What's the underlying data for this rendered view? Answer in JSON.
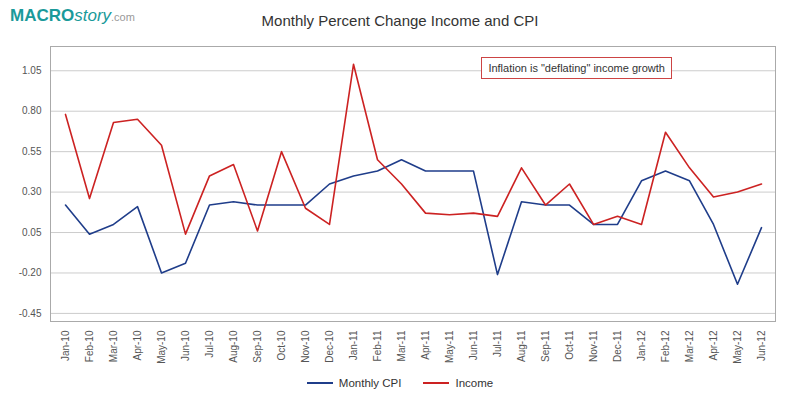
{
  "chart_data": {
    "type": "line",
    "title": "Monthly Percent Change Income and CPI",
    "annotations": [
      {
        "text": "Inflation is \"deflating\" income growth",
        "color": "#cc4444"
      },
      {
        "text": "MACRO",
        "color": "#1a9a9a"
      },
      {
        "text": "story",
        "color": "#1a9a9a"
      },
      {
        "text": ".com",
        "color": "#999999"
      }
    ],
    "categories": [
      "Jan-10",
      "Feb-10",
      "Mar-10",
      "Apr-10",
      "May-10",
      "Jun-10",
      "Jul-10",
      "Aug-10",
      "Sep-10",
      "Oct-10",
      "Nov-10",
      "Dec-10",
      "Jan-11",
      "Feb-11",
      "Mar-11",
      "Apr-11",
      "May-11",
      "Jun-11",
      "Jul-11",
      "Aug-11",
      "Sep-11",
      "Oct-11",
      "Nov-11",
      "Dec-11",
      "Jan-12",
      "Feb-12",
      "Mar-12",
      "Apr-12",
      "May-12",
      "Jun-12"
    ],
    "series": [
      {
        "name": "Monthly CPI",
        "color": "#1f3d8a",
        "values": [
          0.22,
          0.04,
          0.1,
          0.21,
          -0.2,
          -0.14,
          0.22,
          0.24,
          0.22,
          0.22,
          0.22,
          0.35,
          0.4,
          0.43,
          0.5,
          0.43,
          0.43,
          0.43,
          -0.21,
          0.24,
          0.22,
          0.22,
          0.1,
          0.1,
          0.37,
          0.43,
          0.37,
          0.1,
          -0.27,
          0.08
        ]
      },
      {
        "name": "Income",
        "color": "#cc2222",
        "values": [
          0.78,
          0.26,
          0.73,
          0.75,
          0.59,
          0.04,
          0.4,
          0.47,
          0.06,
          0.55,
          0.2,
          0.1,
          1.09,
          0.5,
          0.35,
          0.17,
          0.16,
          0.17,
          0.15,
          0.45,
          0.22,
          0.35,
          0.1,
          0.15,
          0.1,
          0.67,
          0.45,
          0.27,
          0.3,
          0.35
        ]
      }
    ],
    "ylim": [
      -0.5,
      1.2
    ],
    "yticks": [
      -0.45,
      {
        "value": -0.2,
        "label": "-0.20"
      },
      0.05,
      {
        "value": 0.3,
        "label": "0.30"
      },
      0.55,
      {
        "value": 0.8,
        "label": "0.80"
      },
      1.05
    ],
    "grid": true,
    "legend": "bottom"
  }
}
